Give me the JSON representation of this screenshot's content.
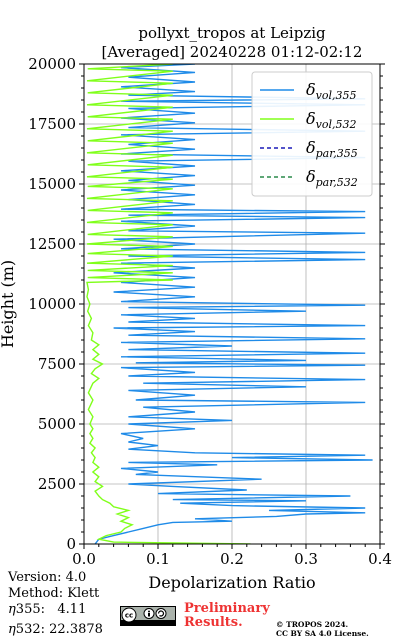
{
  "chart_data": {
    "type": "line",
    "title_line1": "pollyxt_tropos at Leipzig",
    "title_line2": "[Averaged] 20240228 01:12-02:12",
    "xlabel": "Depolarization Ratio",
    "ylabel": "Height (m)",
    "xlim": [
      0,
      0.4
    ],
    "ylim": [
      0,
      20000
    ],
    "x_ticks": [
      "0.0",
      "0.1",
      "0.2",
      "0.3",
      "0.4"
    ],
    "y_ticks": [
      "0",
      "2500",
      "5000",
      "7500",
      "10000",
      "12500",
      "15000",
      "17500",
      "20000"
    ],
    "grid": true,
    "legend_position": "top-right",
    "series": [
      {
        "name_base": "δ",
        "name_sub": "vol,355",
        "color": "#1f8be8",
        "dash": "solid",
        "points": [
          [
            0.015,
            0
          ],
          [
            0.02,
            200
          ],
          [
            0.04,
            350
          ],
          [
            0.06,
            500
          ],
          [
            0.08,
            650
          ],
          [
            0.1,
            800
          ],
          [
            0.12,
            900
          ],
          [
            0.2,
            950
          ],
          [
            0.15,
            1050
          ],
          [
            0.26,
            1150
          ],
          [
            0.3,
            1250
          ],
          [
            0.38,
            1300
          ],
          [
            0.25,
            1400
          ],
          [
            0.38,
            1500
          ],
          [
            0.2,
            1600
          ],
          [
            0.13,
            1700
          ],
          [
            0.3,
            1800
          ],
          [
            0.12,
            1850
          ],
          [
            0.36,
            2000
          ],
          [
            0.1,
            2100
          ],
          [
            0.22,
            2250
          ],
          [
            0.12,
            2400
          ],
          [
            0.06,
            2500
          ],
          [
            0.24,
            2700
          ],
          [
            0.07,
            2900
          ],
          [
            0.1,
            3000
          ],
          [
            0.05,
            3150
          ],
          [
            0.18,
            3300
          ],
          [
            0.06,
            3400
          ],
          [
            0.39,
            3500
          ],
          [
            0.2,
            3600
          ],
          [
            0.38,
            3700
          ],
          [
            0.15,
            3800
          ],
          [
            0.06,
            3950
          ],
          [
            0.1,
            4100
          ],
          [
            0.06,
            4250
          ],
          [
            0.08,
            4400
          ],
          [
            0.05,
            4600
          ],
          [
            0.15,
            4800
          ],
          [
            0.06,
            5000
          ],
          [
            0.2,
            5150
          ],
          [
            0.06,
            5300
          ],
          [
            0.15,
            5500
          ],
          [
            0.08,
            5700
          ],
          [
            0.38,
            5900
          ],
          [
            0.07,
            6000
          ],
          [
            0.15,
            6200
          ],
          [
            0.06,
            6400
          ],
          [
            0.3,
            6550
          ],
          [
            0.08,
            6700
          ],
          [
            0.38,
            6850
          ],
          [
            0.06,
            7000
          ],
          [
            0.15,
            7150
          ],
          [
            0.05,
            7350
          ],
          [
            0.38,
            7450
          ],
          [
            0.07,
            7550
          ],
          [
            0.3,
            7650
          ],
          [
            0.05,
            7800
          ],
          [
            0.38,
            7950
          ],
          [
            0.06,
            8100
          ],
          [
            0.2,
            8250
          ],
          [
            0.05,
            8400
          ],
          [
            0.38,
            8550
          ],
          [
            0.06,
            8700
          ],
          [
            0.15,
            8850
          ],
          [
            0.04,
            9000
          ],
          [
            0.38,
            9100
          ],
          [
            0.06,
            9250
          ],
          [
            0.15,
            9400
          ],
          [
            0.05,
            9550
          ],
          [
            0.3,
            9700
          ],
          [
            0.06,
            9850
          ],
          [
            0.38,
            9950
          ],
          [
            0.05,
            10100
          ],
          [
            0.15,
            10300
          ],
          [
            0.04,
            10500
          ],
          [
            0.15,
            10700
          ],
          [
            0.05,
            10900
          ],
          [
            0.15,
            11100
          ],
          [
            0.04,
            11300
          ],
          [
            0.15,
            11500
          ],
          [
            0.05,
            11700
          ],
          [
            0.38,
            11850
          ],
          [
            0.06,
            12000
          ],
          [
            0.38,
            12150
          ],
          [
            0.05,
            12300
          ],
          [
            0.15,
            12500
          ],
          [
            0.04,
            12700
          ],
          [
            0.38,
            12950
          ],
          [
            0.06,
            13050
          ],
          [
            0.15,
            13250
          ],
          [
            0.05,
            13450
          ],
          [
            0.38,
            13600
          ],
          [
            0.06,
            13700
          ],
          [
            0.38,
            13850
          ],
          [
            0.05,
            13950
          ],
          [
            0.15,
            14150
          ],
          [
            0.06,
            14350
          ],
          [
            0.15,
            14550
          ],
          [
            0.05,
            14750
          ],
          [
            0.15,
            14950
          ],
          [
            0.06,
            15150
          ],
          [
            0.15,
            15350
          ],
          [
            0.05,
            15550
          ],
          [
            0.15,
            15750
          ],
          [
            0.06,
            15950
          ],
          [
            0.38,
            16100
          ],
          [
            0.05,
            16250
          ],
          [
            0.15,
            16450
          ],
          [
            0.06,
            16650
          ],
          [
            0.15,
            16850
          ],
          [
            0.05,
            17050
          ],
          [
            0.38,
            17200
          ],
          [
            0.06,
            17350
          ],
          [
            0.15,
            17550
          ],
          [
            0.05,
            17750
          ],
          [
            0.15,
            17950
          ],
          [
            0.06,
            18150
          ],
          [
            0.38,
            18300
          ],
          [
            0.05,
            18450
          ],
          [
            0.38,
            18550
          ],
          [
            0.06,
            18700
          ],
          [
            0.15,
            18850
          ],
          [
            0.05,
            19050
          ],
          [
            0.15,
            19250
          ],
          [
            0.06,
            19450
          ],
          [
            0.15,
            19650
          ],
          [
            0.05,
            19850
          ],
          [
            0.15,
            20000
          ]
        ]
      },
      {
        "name_base": "δ",
        "name_sub": "vol,532",
        "color": "#80ff1a",
        "dash": "solid",
        "points": [
          [
            0.225,
            0
          ],
          [
            0.04,
            80
          ],
          [
            0.02,
            200
          ],
          [
            0.03,
            350
          ],
          [
            0.05,
            500
          ],
          [
            0.055,
            650
          ],
          [
            0.065,
            800
          ],
          [
            0.05,
            950
          ],
          [
            0.06,
            1100
          ],
          [
            0.045,
            1250
          ],
          [
            0.06,
            1400
          ],
          [
            0.04,
            1550
          ],
          [
            0.035,
            1700
          ],
          [
            0.025,
            1850
          ],
          [
            0.02,
            2000
          ],
          [
            0.015,
            2200
          ],
          [
            0.025,
            2400
          ],
          [
            0.015,
            2600
          ],
          [
            0.02,
            2800
          ],
          [
            0.012,
            3000
          ],
          [
            0.02,
            3200
          ],
          [
            0.012,
            3400
          ],
          [
            0.015,
            3600
          ],
          [
            0.01,
            3800
          ],
          [
            0.015,
            4000
          ],
          [
            0.008,
            4200
          ],
          [
            0.012,
            4400
          ],
          [
            0.008,
            4600
          ],
          [
            0.012,
            4800
          ],
          [
            0.008,
            5000
          ],
          [
            0.012,
            5300
          ],
          [
            0.006,
            5600
          ],
          [
            0.012,
            6000
          ],
          [
            0.006,
            6300
          ],
          [
            0.012,
            6700
          ],
          [
            0.02,
            6900
          ],
          [
            0.01,
            7100
          ],
          [
            0.015,
            7300
          ],
          [
            0.025,
            7500
          ],
          [
            0.012,
            7700
          ],
          [
            0.02,
            7900
          ],
          [
            0.012,
            8100
          ],
          [
            0.02,
            8300
          ],
          [
            0.01,
            8500
          ],
          [
            0.012,
            8800
          ],
          [
            0.006,
            9100
          ],
          [
            0.01,
            9400
          ],
          [
            0.005,
            9700
          ],
          [
            0.008,
            10000
          ],
          [
            0.004,
            10300
          ],
          [
            0.006,
            10600
          ],
          [
            0.004,
            10900
          ],
          [
            0.12,
            11000
          ],
          [
            0.005,
            11100
          ],
          [
            0.12,
            11300
          ],
          [
            0.005,
            11400
          ],
          [
            0.12,
            11600
          ],
          [
            0.004,
            11700
          ],
          [
            0.12,
            12000
          ],
          [
            0.005,
            12100
          ],
          [
            0.12,
            12400
          ],
          [
            0.004,
            12500
          ],
          [
            0.12,
            12800
          ],
          [
            0.005,
            12900
          ],
          [
            0.12,
            13300
          ],
          [
            0.004,
            13400
          ],
          [
            0.12,
            13800
          ],
          [
            0.005,
            13900
          ],
          [
            0.12,
            14300
          ],
          [
            0.004,
            14400
          ],
          [
            0.12,
            14800
          ],
          [
            0.005,
            14900
          ],
          [
            0.12,
            15200
          ],
          [
            0.004,
            15300
          ],
          [
            0.12,
            15700
          ],
          [
            0.005,
            15800
          ],
          [
            0.12,
            16200
          ],
          [
            0.004,
            16300
          ],
          [
            0.12,
            16700
          ],
          [
            0.005,
            16800
          ],
          [
            0.12,
            17200
          ],
          [
            0.004,
            17300
          ],
          [
            0.12,
            17700
          ],
          [
            0.005,
            17800
          ],
          [
            0.12,
            18200
          ],
          [
            0.004,
            18300
          ],
          [
            0.12,
            18700
          ],
          [
            0.005,
            18800
          ],
          [
            0.12,
            19200
          ],
          [
            0.004,
            19300
          ],
          [
            0.12,
            19700
          ],
          [
            0.005,
            19800
          ],
          [
            0.12,
            20000
          ]
        ]
      },
      {
        "name_base": "δ",
        "name_sub": "par,355",
        "color": "#1a1ab8",
        "dash": "dashed",
        "points": []
      },
      {
        "name_base": "δ",
        "name_sub": "par,532",
        "color": "#2a8a4a",
        "dash": "dashed",
        "points": []
      }
    ]
  },
  "footer": {
    "version": "Version: 4.0",
    "method": "Method: Klett",
    "eta355_label": "355:",
    "eta355_value": "4.11",
    "eta532_label": "532:",
    "eta532_value": "22.3878",
    "preliminary_line1": "Preliminary",
    "preliminary_line2": "Results.",
    "copyright_line1": "© TROPOS 2024.",
    "copyright_line2": "CC BY SA 4.0 License.",
    "license_badge": "cc-by-sa-badge"
  }
}
